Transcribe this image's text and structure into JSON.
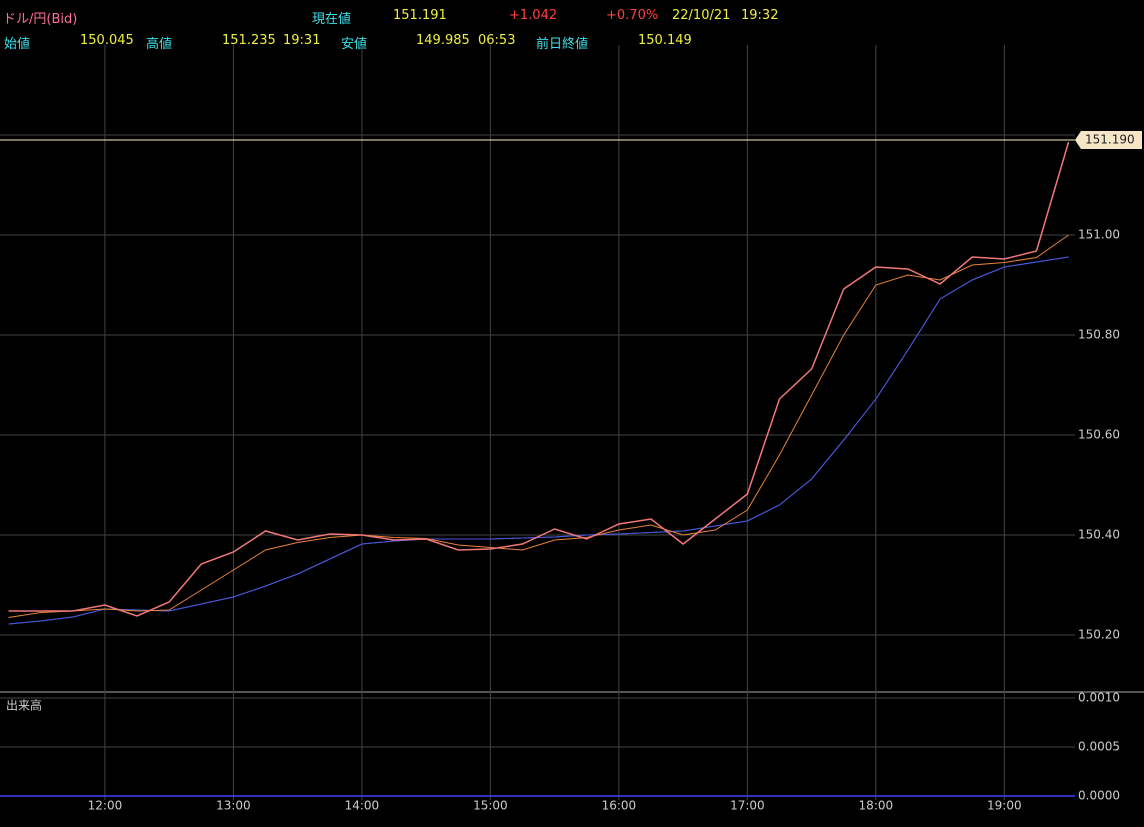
{
  "header": {
    "symbol": "ドル/円(Bid)",
    "current_label": "現在値",
    "current": "151.191",
    "change": "+1.042",
    "change_pct": "+0.70%",
    "date": "22/10/21",
    "time": "19:32",
    "open_label": "始値",
    "open": "150.045",
    "high_label": "高値",
    "high": "151.235",
    "high_time": "19:31",
    "low_label": "安値",
    "low": "149.985",
    "low_time": "06:53",
    "prev_label": "前日終値",
    "prev": "150.149"
  },
  "chart_data": [
    {
      "type": "line",
      "x": [
        "11:15",
        "11:30",
        "11:45",
        "12:00",
        "12:15",
        "12:30",
        "12:45",
        "13:00",
        "13:15",
        "13:30",
        "13:45",
        "14:00",
        "14:15",
        "14:30",
        "14:45",
        "15:00",
        "15:15",
        "15:30",
        "15:45",
        "16:00",
        "16:15",
        "16:30",
        "16:45",
        "17:00",
        "17:15",
        "17:30",
        "17:45",
        "18:00",
        "18:15",
        "18:30",
        "18:45",
        "19:00",
        "19:15",
        "19:30"
      ],
      "series": [
        {
          "color": "#1e90a0",
          "values": [
            150.222,
            150.228,
            150.236,
            150.252,
            150.25,
            150.248,
            150.262,
            150.276,
            150.298,
            150.322,
            150.352,
            150.382,
            150.388,
            150.392,
            150.392,
            150.392,
            150.394,
            150.396,
            150.4,
            150.402,
            150.405,
            150.408,
            150.418,
            150.428,
            150.46,
            150.512,
            150.59,
            150.672,
            150.77,
            150.872,
            150.91,
            150.936,
            150.946,
            150.956
          ]
        },
        {
          "color": "#5050e0",
          "values": [
            150.222,
            150.228,
            150.236,
            150.252,
            150.25,
            150.248,
            150.262,
            150.276,
            150.298,
            150.322,
            150.352,
            150.382,
            150.388,
            150.392,
            150.392,
            150.392,
            150.394,
            150.396,
            150.4,
            150.402,
            150.405,
            150.408,
            150.418,
            150.428,
            150.46,
            150.512,
            150.59,
            150.672,
            150.77,
            150.872,
            150.91,
            150.936,
            150.946,
            150.956
          ]
        },
        {
          "color": "#e8843a",
          "values": [
            150.235,
            150.245,
            150.248,
            150.252,
            150.248,
            150.25,
            150.29,
            150.33,
            150.37,
            150.385,
            150.395,
            150.4,
            150.395,
            150.393,
            150.38,
            150.375,
            150.37,
            150.39,
            150.395,
            150.41,
            150.42,
            150.4,
            150.41,
            150.45,
            150.56,
            150.68,
            150.8,
            150.9,
            150.92,
            150.91,
            150.94,
            150.945,
            150.955,
            151.0
          ]
        },
        {
          "color": "#f07878",
          "values": [
            150.248,
            150.248,
            150.248,
            150.26,
            150.238,
            150.266,
            150.342,
            150.366,
            150.408,
            150.39,
            150.402,
            150.4,
            150.39,
            150.392,
            150.37,
            150.372,
            150.382,
            150.412,
            150.392,
            150.422,
            150.432,
            150.382,
            150.432,
            150.482,
            150.672,
            150.732,
            150.892,
            150.936,
            150.932,
            150.902,
            150.956,
            150.952,
            150.968,
            151.186
          ]
        }
      ],
      "current_price": {
        "value": 151.19,
        "label": "151.190"
      },
      "xlim": [
        "11:11",
        "19:33"
      ],
      "xticks": [
        "12:00",
        "13:00",
        "14:00",
        "15:00",
        "16:00",
        "17:00",
        "18:00",
        "19:00"
      ],
      "ylim": [
        150.086,
        151.36
      ],
      "yticks": [
        {
          "value": 150.2,
          "label": "150.20"
        },
        {
          "value": 150.4,
          "label": "150.40"
        },
        {
          "value": 150.6,
          "label": "150.60"
        },
        {
          "value": 150.8,
          "label": "150.80"
        },
        {
          "value": 151.0,
          "label": "151.00"
        },
        {
          "value": 151.2,
          "label": null
        }
      ],
      "grid": true
    },
    {
      "type": "line",
      "title": "出来高",
      "x": [
        "11:11",
        "19:33"
      ],
      "series": [
        {
          "color": "#4040ff",
          "values": [
            0,
            0
          ]
        }
      ],
      "ylim": [
        0,
        0.00102
      ],
      "yticks": [
        {
          "value": 0,
          "label": "0.0000"
        },
        {
          "value": 0.0005,
          "label": "0.0005"
        },
        {
          "value": 0.001,
          "label": "0.0010"
        }
      ],
      "grid": true
    }
  ]
}
